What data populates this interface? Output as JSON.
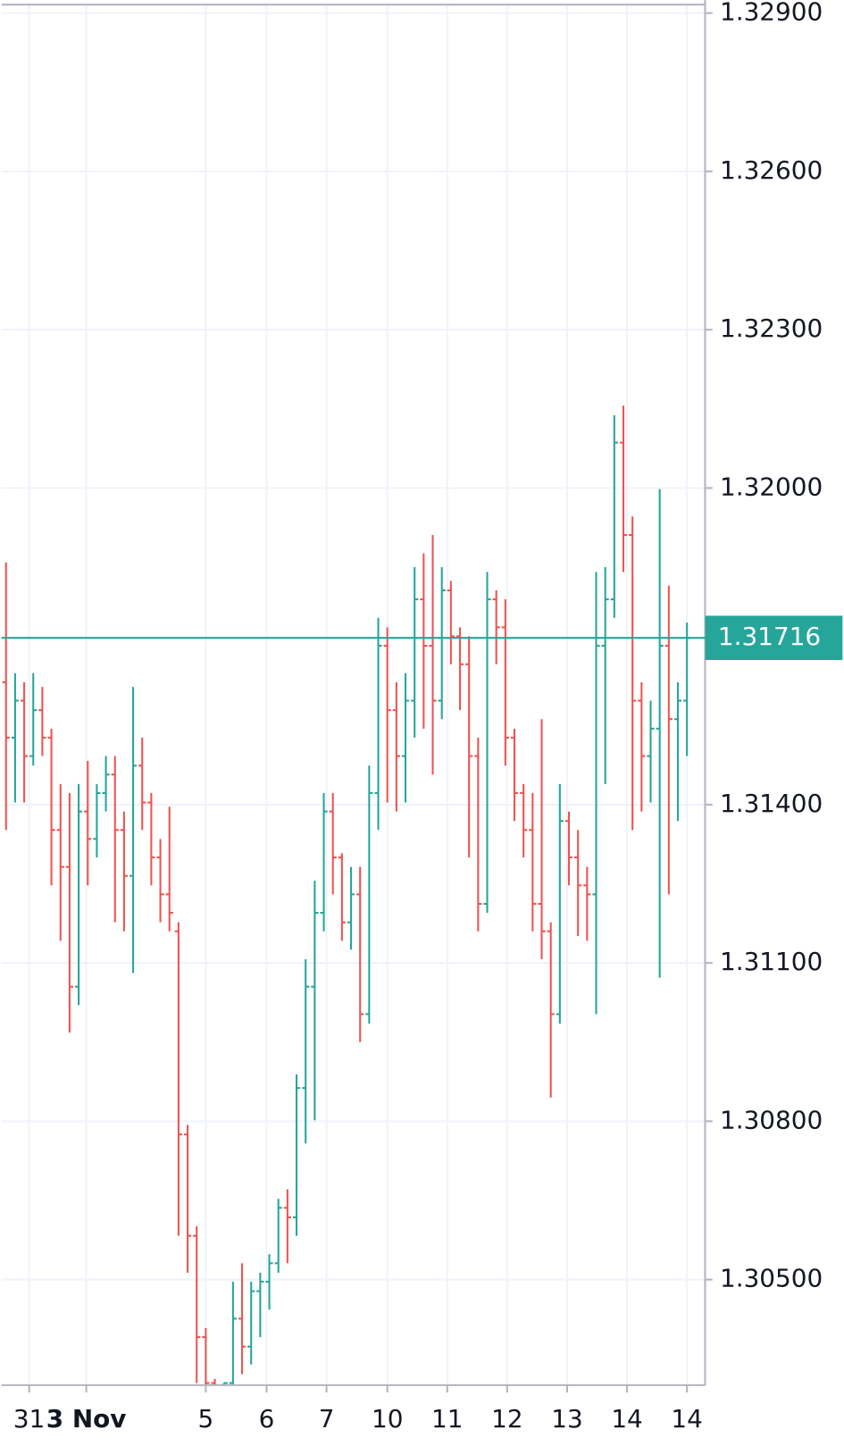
{
  "chart_data": {
    "type": "ohlc",
    "up_color": "#26a69a",
    "down_color": "#ef5350",
    "grid": true,
    "xlim": [
      -0.5,
      77
    ],
    "xticks": [
      {
        "value": 2.55,
        "label": "31"
      },
      {
        "value": 8.84,
        "label": "3 Nov",
        "bold": true
      },
      {
        "value": 22.0,
        "label": "5"
      },
      {
        "value": 28.7,
        "label": "6"
      },
      {
        "value": 35.3,
        "label": "7"
      },
      {
        "value": 42.0,
        "label": "10"
      },
      {
        "value": 48.6,
        "label": "11"
      },
      {
        "value": 55.2,
        "label": "12"
      },
      {
        "value": 61.8,
        "label": "13"
      },
      {
        "value": 68.4,
        "label": "14"
      },
      {
        "value": 75.0,
        "label": "14"
      }
    ],
    "ylim": [
      1.303,
      1.32916
    ],
    "yticks": [
      {
        "value": 1.329,
        "label": "1.32900"
      },
      {
        "value": 1.326,
        "label": "1.32600"
      },
      {
        "value": 1.323,
        "label": "1.32300"
      },
      {
        "value": 1.32,
        "label": "1.32000"
      },
      {
        "value": 1.314,
        "label": "1.31400"
      },
      {
        "value": 1.311,
        "label": "1.31100"
      },
      {
        "value": 1.308,
        "label": "1.30800"
      },
      {
        "value": 1.305,
        "label": "1.30500"
      }
    ],
    "last_price": {
      "value": 1.31716,
      "label": "1.31716"
    },
    "open": [
      1.31632,
      1.31527,
      1.31597,
      1.31492,
      1.31579,
      1.31527,
      1.31352,
      1.31282,
      1.31055,
      1.31387,
      1.31335,
      1.31422,
      1.31457,
      1.31352,
      1.31265,
      1.31474,
      1.31404,
      1.313,
      1.3123,
      1.3116,
      1.30775,
      1.30583,
      1.30391,
      1.30304,
      1.303,
      1.30304,
      1.30426,
      1.30373,
      1.30478,
      1.30496,
      1.30531,
      1.30636,
      1.30618,
      1.30863,
      1.31055,
      1.31195,
      1.31387,
      1.313,
      1.31177,
      1.3123,
      1.31003,
      1.31422,
      1.31701,
      1.31579,
      1.31492,
      1.31597,
      1.31789,
      1.31701,
      1.31597,
      1.31806,
      1.31719,
      1.31666,
      1.31492,
      1.31212,
      1.31789,
      1.31736,
      1.31527,
      1.31422,
      1.31352,
      1.31212,
      1.3116,
      1.31003,
      1.31369,
      1.313,
      1.31247,
      1.3123,
      1.31701,
      1.31789,
      1.32086,
      1.31911,
      1.31597,
      1.31492,
      1.31544,
      1.31701,
      1.31562,
      1.31597
    ],
    "high": [
      1.31859,
      1.31649,
      1.31632,
      1.31649,
      1.31623,
      1.31544,
      1.31439,
      1.31422,
      1.31439,
      1.31483,
      1.31439,
      1.31492,
      1.31492,
      1.31387,
      1.31623,
      1.31527,
      1.31422,
      1.31335,
      1.31396,
      1.31177,
      1.30793,
      1.30601,
      1.30408,
      1.30312,
      1.30304,
      1.30496,
      1.30531,
      1.30496,
      1.30513,
      1.30548,
      1.30653,
      1.30671,
      1.30889,
      1.31107,
      1.31256,
      1.31422,
      1.31422,
      1.31308,
      1.31282,
      1.31282,
      1.31474,
      1.31754,
      1.31736,
      1.31632,
      1.31649,
      1.3185,
      1.31876,
      1.31911,
      1.3185,
      1.31824,
      1.31736,
      1.31719,
      1.31527,
      1.31841,
      1.31806,
      1.31789,
      1.31544,
      1.31439,
      1.31422,
      1.31562,
      1.31177,
      1.31439,
      1.31387,
      1.31352,
      1.31282,
      1.31841,
      1.3185,
      1.32138,
      1.32156,
      1.31946,
      1.31632,
      1.31597,
      1.31998,
      1.31815,
      1.31632,
      1.31745
    ],
    "low": [
      1.31352,
      1.31404,
      1.31404,
      1.31474,
      1.31492,
      1.31247,
      1.31142,
      1.30968,
      1.3102,
      1.31247,
      1.313,
      1.31387,
      1.31177,
      1.3116,
      1.31081,
      1.31352,
      1.31247,
      1.31177,
      1.3116,
      1.30583,
      1.30513,
      1.30304,
      1.303,
      1.303,
      1.303,
      1.303,
      1.30321,
      1.30339,
      1.30391,
      1.30443,
      1.30513,
      1.30531,
      1.30583,
      1.30758,
      1.30802,
      1.3116,
      1.3123,
      1.31142,
      1.31125,
      1.3095,
      1.30985,
      1.31352,
      1.31404,
      1.31387,
      1.31404,
      1.31527,
      1.31544,
      1.31457,
      1.31562,
      1.31666,
      1.31579,
      1.313,
      1.3116,
      1.31195,
      1.31666,
      1.31474,
      1.31369,
      1.313,
      1.3116,
      1.31107,
      1.30845,
      1.30985,
      1.31247,
      1.31151,
      1.31142,
      1.31003,
      1.31439,
      1.31754,
      1.31841,
      1.31352,
      1.31387,
      1.31404,
      1.31072,
      1.3123,
      1.31369,
      1.31492
    ],
    "close": [
      1.31527,
      1.31597,
      1.31492,
      1.31579,
      1.31527,
      1.31352,
      1.31282,
      1.31055,
      1.31387,
      1.31335,
      1.31422,
      1.31457,
      1.31352,
      1.31265,
      1.31474,
      1.31404,
      1.313,
      1.3123,
      1.31195,
      1.30775,
      1.30583,
      1.30391,
      1.30304,
      1.303,
      1.30304,
      1.30426,
      1.30373,
      1.30478,
      1.30496,
      1.30531,
      1.30636,
      1.30618,
      1.30863,
      1.31055,
      1.31195,
      1.31387,
      1.313,
      1.31177,
      1.3123,
      1.31003,
      1.31422,
      1.31701,
      1.31579,
      1.31492,
      1.31597,
      1.31789,
      1.31701,
      1.31597,
      1.31806,
      1.31719,
      1.31666,
      1.31492,
      1.31212,
      1.31789,
      1.31736,
      1.31527,
      1.31422,
      1.31352,
      1.31212,
      1.3116,
      1.31003,
      1.31369,
      1.313,
      1.31247,
      1.3123,
      1.31701,
      1.31789,
      1.32086,
      1.31911,
      1.31597,
      1.31492,
      1.31544,
      1.31701,
      1.31562,
      1.31597,
      1.31716
    ]
  }
}
